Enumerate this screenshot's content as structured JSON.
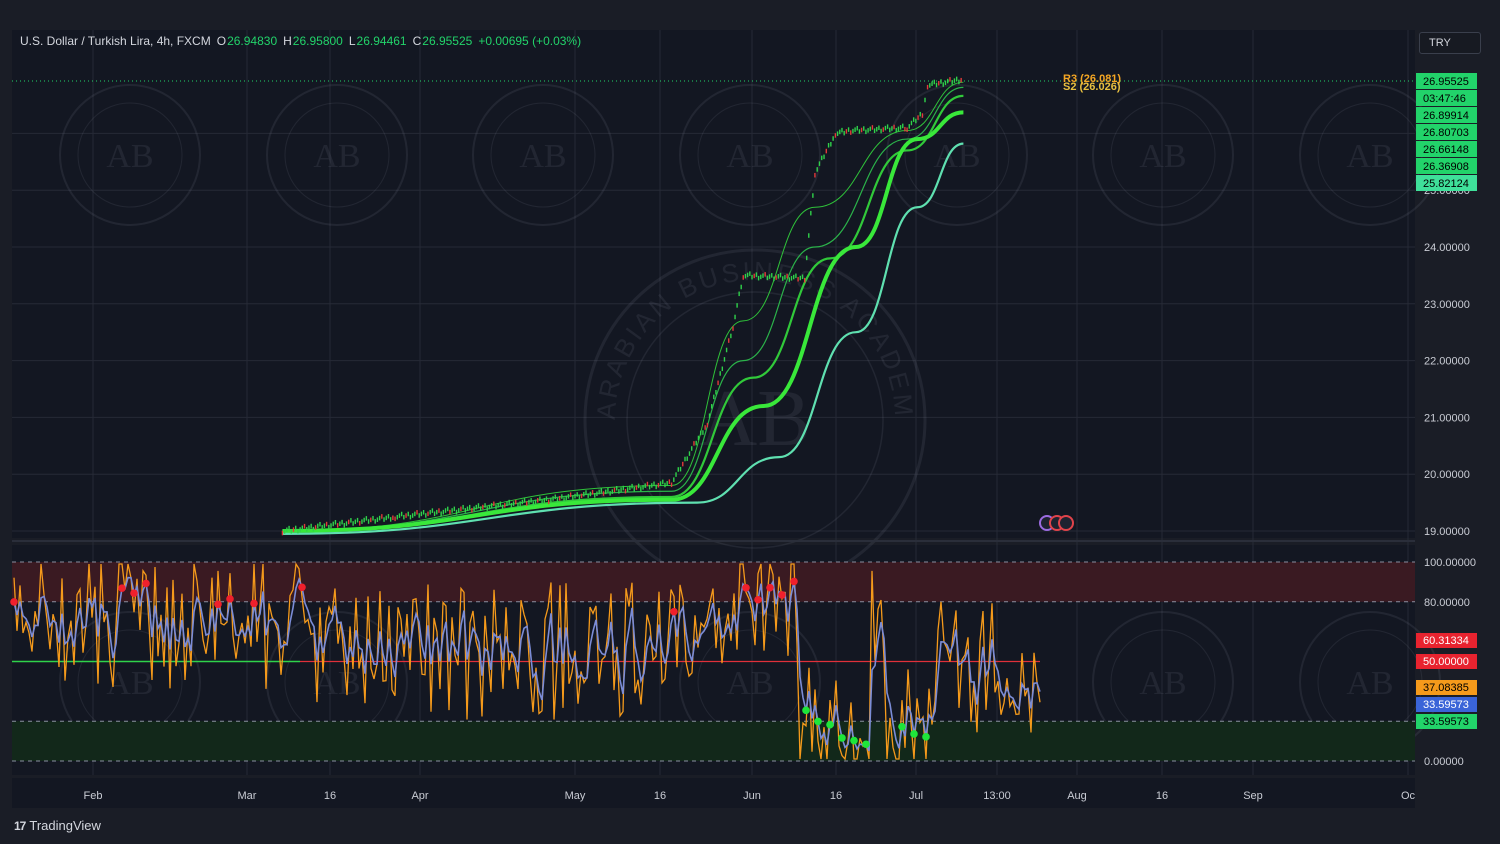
{
  "header": {
    "symbol": "U.S. Dollar / Turkish Lira, 4h, FXCM",
    "open_label": "O",
    "open": "26.94830",
    "high_label": "H",
    "high": "26.95800",
    "low_label": "L",
    "low": "26.94461",
    "close_label": "C",
    "close": "26.95525",
    "change": "+0.00695 (+0.03%)"
  },
  "currency": "TRY",
  "footer": {
    "brand": "TradingView"
  },
  "watermark": {
    "text": "ARABIAN BUSINESS ACADEMY",
    "monogram": "AB"
  },
  "colors": {
    "background": "#131722",
    "price_green": "#22d36a",
    "ma_bright": "#39e83a",
    "ma_slow": "#3fd69a",
    "rsi_blue": "#7b8cd6",
    "rsi_orange": "#f59a1b",
    "dot_red": "#f0202c",
    "dot_green": "#1ee63a",
    "overbought_zone": "#3a1a22",
    "oversold_zone": "#12281a"
  },
  "chart_data": [
    {
      "type": "line",
      "name": "price_panel",
      "y_axis_ticks": [
        "19.00000",
        "20.00000",
        "21.00000",
        "22.00000",
        "23.00000",
        "24.00000",
        "25.00000"
      ],
      "ylim": [
        18.9,
        27.5
      ],
      "x_ticks": [
        "Feb",
        "Mar",
        "16",
        "Apr",
        "May",
        "16",
        "Jun",
        "16",
        "Jul",
        "13:00",
        "Aug",
        "16",
        "Sep",
        "Oc"
      ],
      "price_labels": [
        {
          "value": "26.95525",
          "bg": "#22d36a",
          "fg": "#000000"
        },
        {
          "value": "03:47:46",
          "bg": "#22d36a",
          "fg": "#000000"
        },
        {
          "value": "26.89914",
          "bg": "#22d36a",
          "fg": "#000000"
        },
        {
          "value": "26.80703",
          "bg": "#22d36a",
          "fg": "#000000"
        },
        {
          "value": "26.66148",
          "bg": "#22d36a",
          "fg": "#000000"
        },
        {
          "value": "26.36908",
          "bg": "#22d36a",
          "fg": "#000000"
        },
        {
          "value": "25.82124",
          "bg": "#3fe09a",
          "fg": "#000000"
        }
      ],
      "pivot_labels": [
        "R3 (26.081)",
        "S2 (26.026)"
      ],
      "price_series": {
        "x": [
          "2023-03-10",
          "2023-04-01",
          "2023-05-01",
          "2023-05-25",
          "2023-06-01",
          "2023-06-06",
          "2023-06-08",
          "2023-06-20",
          "2023-06-22",
          "2023-06-26",
          "2023-06-29",
          "2023-07-10",
          "2023-07-13",
          "2023-07-14",
          "2023-07-21"
        ],
        "y": [
          19.0,
          19.25,
          19.55,
          19.85,
          20.9,
          22.6,
          23.5,
          23.45,
          25.3,
          26.0,
          26.05,
          26.1,
          26.35,
          26.85,
          26.955
        ]
      },
      "moving_averages": [
        {
          "x": [
            "2023-03-10",
            "2023-05-25",
            "2023-06-08",
            "2023-06-22",
            "2023-07-10",
            "2023-07-21"
          ],
          "y": [
            19.0,
            19.8,
            22.7,
            24.7,
            26.05,
            26.9
          ]
        },
        {
          "x": [
            "2023-03-10",
            "2023-05-25",
            "2023-06-08",
            "2023-06-22",
            "2023-07-10",
            "2023-07-21"
          ],
          "y": [
            19.0,
            19.7,
            22.0,
            24.0,
            25.9,
            26.81
          ]
        },
        {
          "x": [
            "2023-03-10",
            "2023-05-25",
            "2023-06-10",
            "2023-06-25",
            "2023-07-10",
            "2023-07-21"
          ],
          "y": [
            19.0,
            19.6,
            21.7,
            23.8,
            25.7,
            26.66
          ]
        },
        {
          "x": [
            "2023-03-10",
            "2023-05-25",
            "2023-06-12",
            "2023-06-30",
            "2023-07-12",
            "2023-07-21"
          ],
          "y": [
            19.0,
            19.55,
            21.2,
            24.0,
            25.9,
            26.37
          ]
        },
        {
          "x": [
            "2023-03-10",
            "2023-05-30",
            "2023-06-15",
            "2023-06-30",
            "2023-07-12",
            "2023-07-21"
          ],
          "y": [
            18.95,
            19.5,
            20.3,
            22.5,
            24.7,
            25.82
          ]
        }
      ]
    },
    {
      "type": "line",
      "name": "oscillator_panel",
      "y_axis_ticks": [
        "100.00000",
        "80.00000",
        "0.00000"
      ],
      "ylim": [
        0,
        100
      ],
      "levels": [
        100,
        80,
        50,
        20,
        0
      ],
      "value_labels": [
        {
          "value": "60.31334",
          "bg": "#e8232f",
          "fg": "#ffffff"
        },
        {
          "value": "50.00000",
          "bg": "#e8232f",
          "fg": "#ffffff"
        },
        {
          "value": "37.08385",
          "bg": "#f59a1b",
          "fg": "#000000"
        },
        {
          "value": "33.59573",
          "bg": "#3a64d8",
          "fg": "#ffffff"
        },
        {
          "value": "33.59573",
          "bg": "#22d36a",
          "fg": "#000000"
        }
      ]
    }
  ]
}
